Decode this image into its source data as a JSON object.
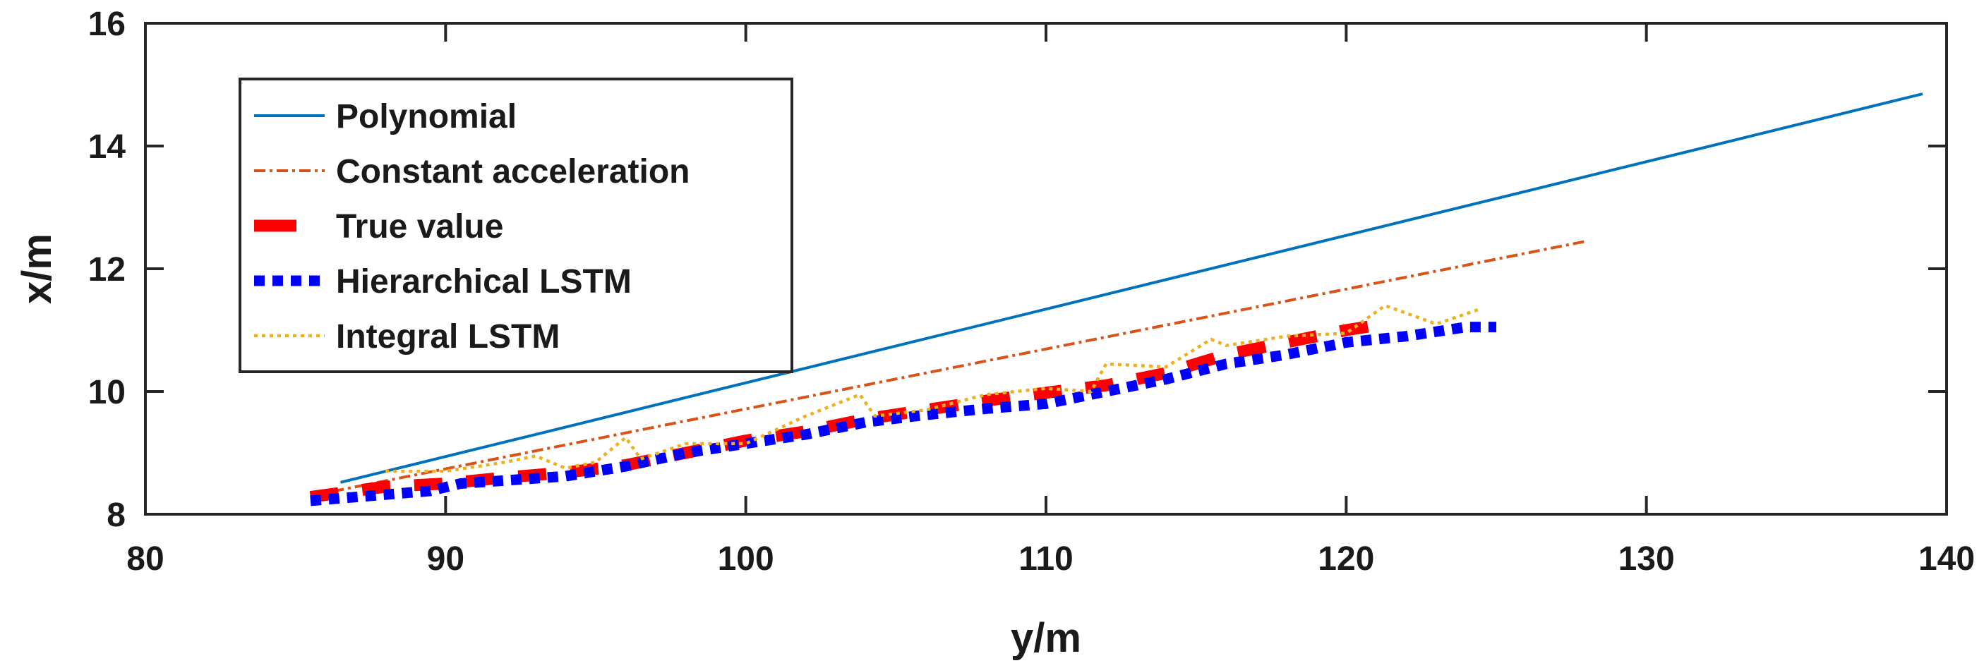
{
  "chart_data": {
    "type": "line",
    "title": "",
    "xlabel": "y/m",
    "ylabel": "x/m",
    "xlim": [
      80,
      140
    ],
    "ylim": [
      8,
      16
    ],
    "xticks": [
      80,
      90,
      100,
      110,
      120,
      130,
      140
    ],
    "yticks": [
      8,
      10,
      12,
      14,
      16
    ],
    "legend_position": "top-left",
    "series": [
      {
        "name": "Polynomial",
        "color": "#0072BD",
        "style": "solid",
        "x": [
          86.5,
          139.2
        ],
        "y": [
          8.52,
          14.85
        ]
      },
      {
        "name": "Constant acceleration",
        "color": "#D95319",
        "style": "dashdot",
        "x": [
          85.5,
          128
        ],
        "y": [
          8.3,
          12.45
        ]
      },
      {
        "name": "True value",
        "color": "#FF0000",
        "style": "dashed-thick",
        "x": [
          85.5,
          88,
          90,
          92,
          94,
          96,
          98,
          100,
          102,
          104,
          106,
          108,
          110,
          112,
          114,
          116,
          118,
          120,
          121.3
        ],
        "y": [
          8.28,
          8.45,
          8.5,
          8.6,
          8.68,
          8.8,
          9.0,
          9.2,
          9.35,
          9.55,
          9.7,
          9.85,
          9.98,
          10.1,
          10.3,
          10.6,
          10.8,
          11.0,
          11.1
        ]
      },
      {
        "name": "Hierarchical LSTM",
        "color": "#0000FF",
        "style": "dotted-thick",
        "x": [
          85.5,
          88,
          89.5,
          90.5,
          92,
          94,
          96,
          98,
          100,
          102,
          104,
          106,
          108,
          110,
          112,
          114,
          116,
          118,
          120,
          122,
          124,
          125
        ],
        "y": [
          8.22,
          8.32,
          8.38,
          8.5,
          8.55,
          8.62,
          8.78,
          9.0,
          9.15,
          9.3,
          9.5,
          9.62,
          9.72,
          9.8,
          10.0,
          10.2,
          10.45,
          10.6,
          10.8,
          10.9,
          11.05,
          11.05
        ]
      },
      {
        "name": "Integral LSTM",
        "color": "#EDB120",
        "style": "dotted",
        "x": [
          88,
          90,
          92,
          93,
          94,
          95,
          96,
          96.5,
          98,
          100,
          102,
          103.8,
          104.3,
          106,
          108,
          110,
          111.5,
          112,
          114,
          115.5,
          116,
          118,
          120,
          121.3,
          123,
          124.5
        ],
        "y": [
          8.7,
          8.7,
          8.85,
          8.95,
          8.75,
          8.85,
          9.25,
          8.9,
          9.15,
          9.15,
          9.6,
          9.95,
          9.6,
          9.7,
          9.95,
          10.05,
          10.0,
          10.45,
          10.4,
          10.85,
          10.75,
          10.9,
          10.95,
          11.4,
          11.1,
          11.35
        ]
      }
    ]
  }
}
